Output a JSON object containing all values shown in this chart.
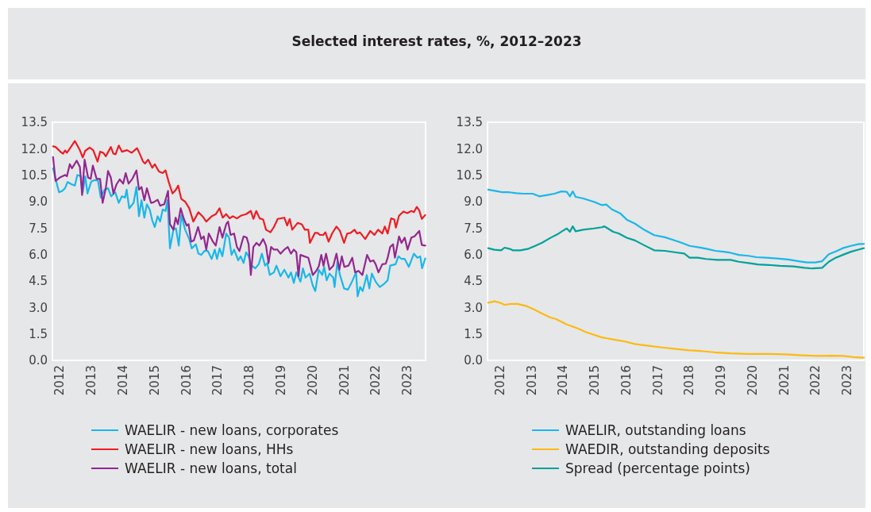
{
  "chart_data": [
    {
      "type": "line",
      "title": "Selected interest rates, %, 2012–2023",
      "xlim": [
        2011.77,
        2023.58
      ],
      "xticks": [
        2012,
        2013,
        2014,
        2015,
        2016,
        2017,
        2018,
        2019,
        2020,
        2021,
        2022,
        2023
      ],
      "ylim": [
        0,
        13.5
      ],
      "yticks": [
        {
          "value": 0,
          "label": "0.0"
        },
        {
          "value": 1.5,
          "label": "1.5"
        },
        {
          "value": 3,
          "label": "3.0"
        },
        {
          "value": 4.5,
          "label": "4.5"
        },
        {
          "value": 6,
          "label": "6.0"
        },
        {
          "value": 7.5,
          "label": "7.5"
        },
        {
          "value": 9,
          "label": "9.0"
        },
        {
          "value": 10.5,
          "label": "10.5"
        },
        {
          "value": 12,
          "label": "12.0"
        },
        {
          "value": 13.5,
          "label": "13.5"
        }
      ],
      "grid": false,
      "legend": "bottom",
      "marker": "none",
      "line_style": "solid",
      "series": [
        {
          "name": "WAELIR - new loans, corporates",
          "color": "#1ab7ea",
          "x": [
            2011.79,
            2011.87,
            2011.98,
            2012.08,
            2012.17,
            2012.25,
            2012.38,
            2012.48,
            2012.56,
            2012.67,
            2012.73,
            2012.81,
            2012.88,
            2013.0,
            2013.09,
            2013.21,
            2013.3,
            2013.42,
            2013.53,
            2013.63,
            2013.76,
            2013.87,
            2013.97,
            2014.07,
            2014.12,
            2014.2,
            2014.34,
            2014.43,
            2014.51,
            2014.59,
            2014.68,
            2014.76,
            2014.85,
            2014.93,
            2015.01,
            2015.1,
            2015.18,
            2015.26,
            2015.35,
            2015.41,
            2015.49,
            2015.6,
            2015.68,
            2015.77,
            2015.85,
            2015.97,
            2016.1,
            2016.18,
            2016.31,
            2016.39,
            2016.48,
            2016.58,
            2016.69,
            2016.81,
            2016.91,
            2016.98,
            2017.06,
            2017.15,
            2017.27,
            2017.36,
            2017.44,
            2017.52,
            2017.65,
            2017.73,
            2017.82,
            2017.9,
            2017.98,
            2018.08,
            2018.19,
            2018.3,
            2018.4,
            2018.5,
            2018.57,
            2018.65,
            2018.78,
            2018.86,
            2018.99,
            2019.11,
            2019.24,
            2019.32,
            2019.41,
            2019.49,
            2019.62,
            2019.7,
            2019.78,
            2019.91,
            2020.01,
            2020.09,
            2020.2,
            2020.31,
            2020.37,
            2020.45,
            2020.54,
            2020.66,
            2020.7,
            2020.79,
            2020.87,
            2021.0,
            2021.12,
            2021.25,
            2021.38,
            2021.43,
            2021.51,
            2021.59,
            2021.72,
            2021.8,
            2021.88,
            2022.0,
            2022.13,
            2022.25,
            2022.38,
            2022.46,
            2022.63,
            2022.72,
            2022.82,
            2022.92,
            2023.05,
            2023.21,
            2023.32,
            2023.41,
            2023.47,
            2023.57
          ],
          "values": [
            10.89,
            10.29,
            9.53,
            9.61,
            9.76,
            10.11,
            9.98,
            9.91,
            10.51,
            10.44,
            9.53,
            10.44,
            9.46,
            10.14,
            10.21,
            10.21,
            9.23,
            9.68,
            9.76,
            9.3,
            9.53,
            8.93,
            9.3,
            9.23,
            9.68,
            8.62,
            8.93,
            9.83,
            8.17,
            9.08,
            8.09,
            8.85,
            8.55,
            7.94,
            7.56,
            8.17,
            7.87,
            8.55,
            8.47,
            9.08,
            6.35,
            7.41,
            7.49,
            6.51,
            8.24,
            7.41,
            6.88,
            6.35,
            6.58,
            6.05,
            5.98,
            6.2,
            6.2,
            5.75,
            6.28,
            5.75,
            6.35,
            5.9,
            7.19,
            6.96,
            5.98,
            6.28,
            5.67,
            5.9,
            5.52,
            6.13,
            5.9,
            5.37,
            5.22,
            5.45,
            6.05,
            5.37,
            5.52,
            4.84,
            4.99,
            5.37,
            4.77,
            5.14,
            4.69,
            4.99,
            4.39,
            4.99,
            4.46,
            5.22,
            4.69,
            4.92,
            4.24,
            3.93,
            5.14,
            4.84,
            5.3,
            4.54,
            4.92,
            4.69,
            4.16,
            5.6,
            4.84,
            4.08,
            4.01,
            4.46,
            4.99,
            3.63,
            4.16,
            3.93,
            4.84,
            4.08,
            4.92,
            4.46,
            4.16,
            4.31,
            4.54,
            5.37,
            5.45,
            5.9,
            5.75,
            5.75,
            5.3,
            6.05,
            5.82,
            5.9,
            5.22,
            5.78
          ]
        },
        {
          "name": "WAELIR - new loans, HHs",
          "color": "#ed1c24",
          "x": [
            2011.79,
            2011.87,
            2012.04,
            2012.11,
            2012.17,
            2012.23,
            2012.33,
            2012.48,
            2012.63,
            2012.73,
            2012.81,
            2012.95,
            2013.06,
            2013.2,
            2013.28,
            2013.38,
            2013.46,
            2013.62,
            2013.7,
            2013.77,
            2013.87,
            2013.97,
            2014.13,
            2014.28,
            2014.45,
            2014.55,
            2014.64,
            2014.7,
            2014.8,
            2014.93,
            2015.01,
            2015.14,
            2015.26,
            2015.35,
            2015.46,
            2015.57,
            2015.67,
            2015.75,
            2015.85,
            2015.97,
            2016.1,
            2016.23,
            2016.39,
            2016.52,
            2016.64,
            2016.81,
            2016.94,
            2017.06,
            2017.16,
            2017.27,
            2017.38,
            2017.48,
            2017.61,
            2017.73,
            2017.9,
            2018.05,
            2018.13,
            2018.22,
            2018.33,
            2018.44,
            2018.53,
            2018.67,
            2018.78,
            2018.9,
            2019.11,
            2019.2,
            2019.28,
            2019.36,
            2019.53,
            2019.66,
            2019.76,
            2019.87,
            2019.92,
            2020.08,
            2020.16,
            2020.24,
            2020.34,
            2020.41,
            2020.51,
            2020.62,
            2020.76,
            2020.87,
            2021.0,
            2021.1,
            2021.21,
            2021.33,
            2021.41,
            2021.5,
            2021.67,
            2021.83,
            2021.96,
            2022.08,
            2022.21,
            2022.29,
            2022.38,
            2022.49,
            2022.59,
            2022.64,
            2022.74,
            2022.88,
            2023.0,
            2023.13,
            2023.21,
            2023.3,
            2023.38,
            2023.46,
            2023.57
          ],
          "values": [
            12.13,
            12.1,
            11.8,
            11.72,
            11.9,
            11.77,
            12.03,
            12.44,
            11.95,
            11.5,
            11.88,
            12.07,
            11.92,
            11.27,
            11.83,
            11.77,
            11.57,
            12.1,
            11.72,
            11.68,
            12.18,
            11.83,
            11.92,
            11.77,
            12.03,
            11.65,
            11.27,
            11.16,
            11.38,
            10.92,
            11.12,
            10.71,
            10.62,
            10.77,
            10.06,
            9.46,
            9.65,
            9.91,
            9.15,
            9.0,
            8.62,
            7.87,
            8.4,
            8.17,
            7.87,
            8.17,
            8.29,
            8.62,
            8.09,
            8.29,
            8.05,
            8.17,
            8.05,
            8.2,
            8.29,
            8.47,
            8.02,
            8.47,
            8.05,
            7.99,
            7.41,
            7.26,
            7.56,
            8.02,
            8.09,
            7.64,
            8.02,
            7.41,
            7.79,
            7.72,
            7.41,
            7.41,
            6.66,
            7.23,
            7.23,
            7.11,
            7.11,
            7.26,
            6.73,
            7.19,
            7.59,
            7.34,
            6.66,
            7.19,
            7.23,
            7.41,
            7.19,
            7.26,
            6.88,
            7.34,
            7.11,
            7.41,
            7.19,
            7.59,
            7.19,
            8.05,
            7.99,
            7.53,
            8.2,
            8.44,
            8.35,
            8.47,
            8.4,
            8.7,
            8.5,
            8.02,
            8.24
          ]
        },
        {
          "name": "WAELIR - new loans, total",
          "color": "#92278f",
          "x": [
            2011.79,
            2011.87,
            2012.0,
            2012.17,
            2012.23,
            2012.32,
            2012.39,
            2012.54,
            2012.64,
            2012.71,
            2012.79,
            2012.9,
            2012.98,
            2013.05,
            2013.17,
            2013.28,
            2013.36,
            2013.46,
            2013.53,
            2013.62,
            2013.7,
            2013.8,
            2013.9,
            2014.01,
            2014.09,
            2014.18,
            2014.3,
            2014.43,
            2014.51,
            2014.59,
            2014.68,
            2014.76,
            2014.89,
            2014.97,
            2015.1,
            2015.18,
            2015.31,
            2015.43,
            2015.49,
            2015.6,
            2015.67,
            2015.74,
            2015.83,
            2015.93,
            2016.02,
            2016.08,
            2016.16,
            2016.25,
            2016.38,
            2016.48,
            2016.56,
            2016.64,
            2016.72,
            2016.85,
            2016.94,
            2017.06,
            2017.15,
            2017.27,
            2017.33,
            2017.41,
            2017.52,
            2017.61,
            2017.69,
            2017.82,
            2017.92,
            2017.98,
            2018.05,
            2018.13,
            2018.23,
            2018.32,
            2018.44,
            2018.53,
            2018.61,
            2018.69,
            2018.78,
            2018.89,
            2018.99,
            2019.11,
            2019.22,
            2019.32,
            2019.41,
            2019.49,
            2019.56,
            2019.62,
            2019.74,
            2019.87,
            2020.01,
            2020.12,
            2020.2,
            2020.28,
            2020.35,
            2020.43,
            2020.54,
            2020.66,
            2020.76,
            2020.85,
            2020.93,
            2021.01,
            2021.14,
            2021.26,
            2021.35,
            2021.46,
            2021.58,
            2021.73,
            2021.83,
            2021.93,
            2022.0,
            2022.09,
            2022.21,
            2022.32,
            2022.38,
            2022.46,
            2022.55,
            2022.61,
            2022.74,
            2022.82,
            2022.92,
            2023.01,
            2023.13,
            2023.23,
            2023.38,
            2023.46,
            2023.57
          ],
          "values": [
            11.53,
            10.17,
            10.36,
            10.51,
            10.44,
            11.12,
            10.89,
            11.32,
            10.97,
            9.38,
            11.38,
            10.36,
            10.29,
            11.04,
            10.29,
            10.29,
            8.93,
            9.76,
            10.74,
            10.36,
            9.46,
            9.98,
            10.26,
            10.02,
            10.62,
            10.02,
            10.29,
            10.77,
            9.68,
            9.83,
            9.08,
            9.76,
            8.93,
            8.96,
            9.11,
            8.77,
            8.85,
            9.61,
            7.72,
            7.41,
            8.09,
            7.72,
            8.62,
            8.02,
            7.64,
            7.72,
            6.73,
            6.81,
            7.56,
            6.88,
            7.03,
            6.28,
            7.19,
            6.73,
            6.51,
            7.56,
            6.96,
            7.72,
            7.87,
            7.11,
            7.19,
            6.43,
            6.2,
            7.03,
            6.96,
            6.58,
            4.84,
            6.43,
            6.66,
            6.51,
            6.88,
            6.51,
            5.52,
            6.43,
            6.28,
            6.28,
            6.05,
            6.28,
            6.43,
            6.05,
            6.28,
            6.13,
            4.77,
            5.98,
            5.9,
            5.82,
            4.84,
            5.07,
            5.33,
            5.98,
            5.37,
            6.05,
            5.14,
            5.37,
            6.05,
            5.14,
            5.9,
            5.3,
            5.37,
            5.82,
            4.99,
            5.07,
            4.84,
            5.98,
            5.6,
            5.67,
            5.45,
            4.99,
            5.45,
            5.48,
            5.82,
            6.43,
            6.58,
            5.82,
            7.03,
            6.66,
            6.96,
            6.28,
            6.96,
            7.03,
            7.34,
            6.54,
            6.51
          ]
        }
      ]
    },
    {
      "type": "line",
      "xlim": [
        2011.61,
        2023.53
      ],
      "xticks": [
        2012,
        2013,
        2014,
        2015,
        2016,
        2017,
        2018,
        2019,
        2020,
        2021,
        2022,
        2023
      ],
      "ylim": [
        0,
        13.5
      ],
      "yticks": [
        {
          "value": 0,
          "label": "0.0"
        },
        {
          "value": 1.5,
          "label": "1.5"
        },
        {
          "value": 3,
          "label": "3.0"
        },
        {
          "value": 4.5,
          "label": "4.5"
        },
        {
          "value": 6,
          "label": "6.0"
        },
        {
          "value": 7.5,
          "label": "7.5"
        },
        {
          "value": 9,
          "label": "9.0"
        },
        {
          "value": 10.5,
          "label": "10.5"
        },
        {
          "value": 12,
          "label": "12.0"
        },
        {
          "value": 13.5,
          "label": "13.5"
        }
      ],
      "grid": false,
      "legend": "bottom",
      "marker": "none",
      "line_style": "solid",
      "series": [
        {
          "name": "WAELIR, outstanding loans",
          "color": "#1ab7ea",
          "x": [
            2011.63,
            2011.87,
            2012.09,
            2012.3,
            2012.52,
            2012.74,
            2013.04,
            2013.25,
            2013.51,
            2013.73,
            2013.95,
            2014.12,
            2014.22,
            2014.31,
            2014.4,
            2014.64,
            2014.98,
            2015.24,
            2015.37,
            2015.55,
            2015.81,
            2016.02,
            2016.28,
            2016.54,
            2016.89,
            2017.23,
            2017.49,
            2017.75,
            2018.01,
            2018.31,
            2018.57,
            2018.83,
            2019.09,
            2019.31,
            2019.57,
            2019.87,
            2020.13,
            2020.43,
            2020.78,
            2021.13,
            2021.47,
            2021.73,
            2021.99,
            2022.21,
            2022.42,
            2022.64,
            2022.86,
            2023.12,
            2023.38,
            2023.53
          ],
          "values": [
            9.68,
            9.6,
            9.53,
            9.53,
            9.48,
            9.45,
            9.45,
            9.3,
            9.38,
            9.45,
            9.58,
            9.56,
            9.3,
            9.58,
            9.27,
            9.18,
            8.99,
            8.8,
            8.84,
            8.56,
            8.34,
            7.98,
            7.75,
            7.44,
            7.1,
            6.98,
            6.83,
            6.67,
            6.49,
            6.41,
            6.32,
            6.21,
            6.16,
            6.1,
            5.98,
            5.93,
            5.85,
            5.82,
            5.78,
            5.72,
            5.62,
            5.55,
            5.55,
            5.62,
            6.02,
            6.18,
            6.36,
            6.49,
            6.6,
            6.6
          ]
        },
        {
          "name": "WAEDIR, outstanding deposits",
          "color": "#fdb913",
          "x": [
            2011.63,
            2011.83,
            2012.0,
            2012.15,
            2012.35,
            2012.56,
            2012.82,
            2013.08,
            2013.34,
            2013.6,
            2013.77,
            2014.12,
            2014.47,
            2014.72,
            2014.98,
            2015.24,
            2015.59,
            2015.94,
            2016.28,
            2016.71,
            2017.15,
            2017.58,
            2018.01,
            2018.36,
            2018.79,
            2019.31,
            2019.83,
            2020.52,
            2021.04,
            2021.56,
            2022.08,
            2022.51,
            2022.86,
            2023.2,
            2023.53
          ],
          "values": [
            3.27,
            3.35,
            3.27,
            3.15,
            3.2,
            3.2,
            3.09,
            2.89,
            2.66,
            2.43,
            2.35,
            2.04,
            1.81,
            1.61,
            1.45,
            1.3,
            1.19,
            1.08,
            0.93,
            0.83,
            0.73,
            0.65,
            0.57,
            0.53,
            0.46,
            0.4,
            0.37,
            0.37,
            0.34,
            0.29,
            0.25,
            0.26,
            0.25,
            0.19,
            0.15
          ]
        },
        {
          "name": "Spread (percentage points)",
          "color": "#00a19a",
          "x": [
            2011.63,
            2011.83,
            2012.04,
            2012.15,
            2012.3,
            2012.41,
            2012.65,
            2012.91,
            2013.12,
            2013.34,
            2013.56,
            2013.64,
            2013.82,
            2013.99,
            2014.12,
            2014.22,
            2014.31,
            2014.4,
            2014.64,
            2014.98,
            2015.24,
            2015.31,
            2015.59,
            2015.76,
            2016.02,
            2016.28,
            2016.58,
            2016.89,
            2017.23,
            2017.58,
            2017.84,
            2018.01,
            2018.27,
            2018.53,
            2018.88,
            2019.31,
            2019.57,
            2019.92,
            2020.17,
            2020.52,
            2020.87,
            2021.3,
            2021.65,
            2021.9,
            2022.21,
            2022.42,
            2022.64,
            2022.86,
            2023.12,
            2023.38,
            2023.53
          ],
          "values": [
            6.36,
            6.27,
            6.24,
            6.39,
            6.33,
            6.24,
            6.24,
            6.33,
            6.49,
            6.67,
            6.9,
            6.98,
            7.14,
            7.34,
            7.48,
            7.29,
            7.6,
            7.32,
            7.41,
            7.48,
            7.55,
            7.6,
            7.29,
            7.2,
            6.95,
            6.8,
            6.52,
            6.24,
            6.21,
            6.12,
            6.06,
            5.82,
            5.82,
            5.75,
            5.7,
            5.7,
            5.59,
            5.51,
            5.44,
            5.41,
            5.36,
            5.33,
            5.25,
            5.21,
            5.25,
            5.59,
            5.82,
            5.98,
            6.16,
            6.29,
            6.36
          ]
        }
      ]
    }
  ]
}
